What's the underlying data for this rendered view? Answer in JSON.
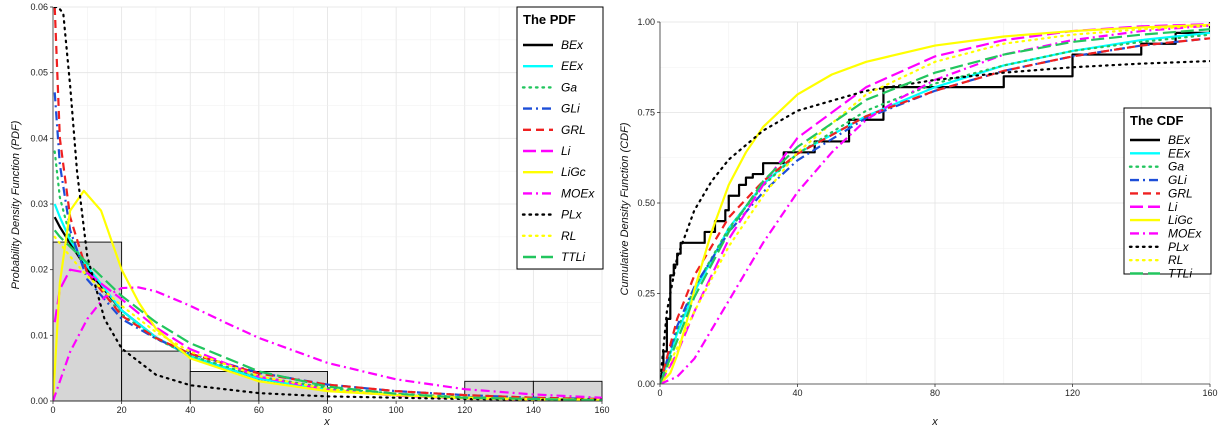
{
  "chart_data": [
    {
      "type": "line",
      "title": "",
      "xlabel": "x",
      "ylabel": "Probability Density Function (PDF)",
      "xlim": [
        0,
        160
      ],
      "ylim": [
        0,
        0.06
      ],
      "xticks": [
        "0",
        "20",
        "40",
        "60",
        "80",
        "100",
        "120",
        "140",
        "160"
      ],
      "yticks": [
        "0.00",
        "0.01",
        "0.02",
        "0.03",
        "0.04",
        "0.05",
        "0.06"
      ],
      "grid": true,
      "legend": {
        "title": "The PDF",
        "placement": "top-right"
      },
      "histogram": {
        "bin_edges": [
          0,
          20,
          40,
          60,
          80,
          100,
          120,
          140,
          160
        ],
        "density": [
          0.0242,
          0.0076,
          0.0045,
          0.0045,
          0.0,
          0.0,
          0.003,
          0.003
        ]
      },
      "series": [
        {
          "name": "BEx",
          "color": "#000000",
          "dash": "solid",
          "x": [
            0.5,
            2,
            5,
            10,
            20,
            30,
            40,
            60,
            80,
            100,
            120,
            140,
            160
          ],
          "y": [
            0.028,
            0.0265,
            0.024,
            0.02,
            0.0138,
            0.0097,
            0.0068,
            0.0034,
            0.0017,
            0.0009,
            0.0005,
            0.0003,
            0.0002
          ]
        },
        {
          "name": "EEx",
          "color": "#00ffff",
          "dash": "solid",
          "x": [
            0.5,
            2,
            5,
            10,
            20,
            30,
            40,
            60,
            80,
            100,
            120,
            140,
            160
          ],
          "y": [
            0.03,
            0.028,
            0.0245,
            0.0205,
            0.0138,
            0.0097,
            0.0068,
            0.0034,
            0.0017,
            0.0009,
            0.0005,
            0.0003,
            0.0002
          ]
        },
        {
          "name": "Ga",
          "color": "#22c55e",
          "dash": "dot",
          "x": [
            0.5,
            2,
            5,
            10,
            20,
            30,
            40,
            60,
            80,
            100,
            120,
            140,
            160
          ],
          "y": [
            0.038,
            0.031,
            0.025,
            0.0195,
            0.0132,
            0.0095,
            0.0069,
            0.0037,
            0.002,
            0.0011,
            0.0006,
            0.0004,
            0.0002
          ]
        },
        {
          "name": "GLi",
          "color": "#1d4ed8",
          "dash": "dashdot",
          "x": [
            0.5,
            2,
            5,
            10,
            20,
            30,
            40,
            60,
            80,
            100,
            120,
            140,
            160
          ],
          "y": [
            0.047,
            0.036,
            0.026,
            0.0185,
            0.0125,
            0.0095,
            0.0072,
            0.0043,
            0.0025,
            0.0015,
            0.0009,
            0.0005,
            0.0003
          ]
        },
        {
          "name": "GRL",
          "color": "#ef2020",
          "dash": "dash",
          "x": [
            0.5,
            2,
            5,
            10,
            20,
            30,
            40,
            60,
            80,
            100,
            120,
            140,
            160
          ],
          "y": [
            0.06,
            0.04,
            0.028,
            0.0195,
            0.013,
            0.0096,
            0.0072,
            0.0042,
            0.0025,
            0.0015,
            0.0009,
            0.0005,
            0.0003
          ]
        },
        {
          "name": "Li",
          "color": "#ff00ff",
          "dash": "longdash",
          "x": [
            0.5,
            2,
            5,
            10,
            20,
            30,
            40,
            60,
            80,
            100,
            120,
            140,
            160
          ],
          "y": [
            0.012,
            0.017,
            0.02,
            0.0195,
            0.0155,
            0.0112,
            0.0079,
            0.0037,
            0.0017,
            0.0008,
            0.0004,
            0.0002,
            0.0001
          ]
        },
        {
          "name": "LiGc",
          "color": "#ffff00",
          "dash": "solid",
          "x": [
            0,
            2,
            5,
            9,
            14,
            20,
            25,
            30,
            40,
            60,
            80,
            100,
            120,
            140,
            160
          ],
          "y": [
            0.0,
            0.018,
            0.029,
            0.032,
            0.029,
            0.02,
            0.015,
            0.011,
            0.0065,
            0.003,
            0.0015,
            0.0009,
            0.0005,
            0.0003,
            0.0002
          ]
        },
        {
          "name": "MOEx",
          "color": "#ff00ff",
          "dash": "dashdot",
          "x": [
            0,
            5,
            10,
            15,
            20,
            25,
            30,
            40,
            50,
            60,
            80,
            100,
            120,
            140,
            160
          ],
          "y": [
            0.0,
            0.0075,
            0.0125,
            0.0158,
            0.0172,
            0.0173,
            0.0167,
            0.0145,
            0.012,
            0.0096,
            0.0058,
            0.0033,
            0.0018,
            0.001,
            0.0005
          ]
        },
        {
          "name": "PLx",
          "color": "#000000",
          "dash": "dot",
          "x": [
            0.5,
            1.5,
            3,
            5,
            7,
            10,
            15,
            20,
            30,
            40,
            60,
            80,
            100,
            120,
            140,
            160
          ],
          "y": [
            0.06,
            0.06,
            0.059,
            0.048,
            0.035,
            0.022,
            0.0125,
            0.008,
            0.004,
            0.0024,
            0.0012,
            0.0007,
            0.0005,
            0.0003,
            0.0002,
            0.0002
          ]
        },
        {
          "name": "RL",
          "color": "#ffff00",
          "dash": "dot",
          "x": [
            0.5,
            2,
            5,
            10,
            20,
            30,
            40,
            60,
            80,
            100,
            120,
            140,
            160
          ],
          "y": [
            0.025,
            0.024,
            0.022,
            0.019,
            0.0145,
            0.0105,
            0.0075,
            0.0038,
            0.0018,
            0.0009,
            0.0004,
            0.0002,
            0.0001
          ]
        },
        {
          "name": "TTLi",
          "color": "#22c55e",
          "dash": "longdash",
          "x": [
            0.5,
            2,
            5,
            10,
            20,
            30,
            40,
            60,
            80,
            100,
            120,
            140,
            160
          ],
          "y": [
            0.026,
            0.025,
            0.0235,
            0.021,
            0.016,
            0.012,
            0.0088,
            0.0045,
            0.0022,
            0.0011,
            0.0005,
            0.0003,
            0.0001
          ]
        }
      ]
    },
    {
      "type": "line",
      "title": "",
      "xlabel": "x",
      "ylabel": "Cumulative Density Function (CDF)",
      "xlim": [
        0,
        160
      ],
      "ylim": [
        0,
        1.0
      ],
      "xticks": [
        "0",
        "40",
        "80",
        "120",
        "160"
      ],
      "yticks": [
        "0.00",
        "0.25",
        "0.50",
        "0.75",
        "1.00"
      ],
      "grid": true,
      "legend": {
        "title": "The CDF",
        "placement": "right"
      },
      "series": [
        {
          "name": "BEx",
          "color": "#000000",
          "dash": "solid",
          "step": true,
          "x": [
            0,
            0.5,
            1,
            2,
            3,
            4,
            5,
            6,
            8,
            10,
            13,
            16,
            19,
            20,
            23,
            25,
            27,
            30,
            36,
            45,
            55,
            65,
            100,
            120,
            140,
            150,
            160
          ],
          "y": [
            0.0,
            0.03,
            0.09,
            0.18,
            0.3,
            0.33,
            0.36,
            0.39,
            0.39,
            0.39,
            0.42,
            0.45,
            0.48,
            0.52,
            0.55,
            0.57,
            0.58,
            0.61,
            0.64,
            0.67,
            0.73,
            0.82,
            0.85,
            0.91,
            0.94,
            0.97,
            1.0
          ]
        },
        {
          "name": "EEx",
          "color": "#00ffff",
          "dash": "solid",
          "x": [
            0,
            5,
            10,
            20,
            30,
            40,
            60,
            80,
            100,
            120,
            140,
            160
          ],
          "y": [
            0.0,
            0.14,
            0.255,
            0.43,
            0.552,
            0.637,
            0.74,
            0.82,
            0.88,
            0.92,
            0.95,
            0.97
          ]
        },
        {
          "name": "Ga",
          "color": "#22c55e",
          "dash": "dot",
          "x": [
            0,
            5,
            10,
            20,
            30,
            40,
            60,
            80,
            100,
            120,
            140,
            160
          ],
          "y": [
            0.0,
            0.15,
            0.265,
            0.43,
            0.548,
            0.636,
            0.755,
            0.83,
            0.88,
            0.92,
            0.945,
            0.965
          ]
        },
        {
          "name": "GLi",
          "color": "#1d4ed8",
          "dash": "dashdot",
          "x": [
            0,
            5,
            10,
            20,
            30,
            40,
            60,
            80,
            100,
            120,
            140,
            160
          ],
          "y": [
            0.0,
            0.16,
            0.268,
            0.42,
            0.53,
            0.618,
            0.735,
            0.81,
            0.865,
            0.905,
            0.935,
            0.955
          ]
        },
        {
          "name": "GRL",
          "color": "#ef2020",
          "dash": "dash",
          "x": [
            0,
            5,
            10,
            20,
            30,
            40,
            60,
            80,
            100,
            120,
            140,
            160
          ],
          "y": [
            0.0,
            0.18,
            0.3,
            0.46,
            0.56,
            0.636,
            0.74,
            0.81,
            0.865,
            0.905,
            0.935,
            0.955
          ]
        },
        {
          "name": "Li",
          "color": "#ff00ff",
          "dash": "longdash",
          "x": [
            0,
            5,
            10,
            20,
            30,
            40,
            60,
            80,
            100,
            120,
            140,
            160
          ],
          "y": [
            0.0,
            0.085,
            0.2,
            0.4,
            0.55,
            0.68,
            0.82,
            0.905,
            0.95,
            0.975,
            0.988,
            0.994
          ]
        },
        {
          "name": "LiGc",
          "color": "#ffff00",
          "dash": "solid",
          "x": [
            0,
            3,
            5,
            8,
            10,
            15,
            20,
            25,
            30,
            40,
            50,
            60,
            80,
            100,
            120,
            140,
            160
          ],
          "y": [
            0.0,
            0.03,
            0.08,
            0.18,
            0.26,
            0.42,
            0.55,
            0.64,
            0.71,
            0.8,
            0.855,
            0.89,
            0.935,
            0.96,
            0.975,
            0.985,
            0.992
          ]
        },
        {
          "name": "MOEx",
          "color": "#ff00ff",
          "dash": "dashdot",
          "x": [
            0,
            5,
            10,
            15,
            20,
            25,
            30,
            40,
            50,
            60,
            70,
            80,
            100,
            120,
            140,
            160
          ],
          "y": [
            0.0,
            0.02,
            0.07,
            0.15,
            0.23,
            0.31,
            0.39,
            0.53,
            0.64,
            0.73,
            0.79,
            0.84,
            0.91,
            0.95,
            0.975,
            0.99
          ]
        },
        {
          "name": "PLx",
          "color": "#000000",
          "dash": "dot",
          "x": [
            0,
            2,
            5,
            10,
            15,
            20,
            30,
            40,
            60,
            80,
            100,
            120,
            140,
            160
          ],
          "y": [
            0.0,
            0.2,
            0.35,
            0.48,
            0.56,
            0.62,
            0.7,
            0.755,
            0.81,
            0.84,
            0.86,
            0.875,
            0.885,
            0.892
          ]
        },
        {
          "name": "RL",
          "color": "#ffff00",
          "dash": "dot",
          "x": [
            0,
            5,
            10,
            20,
            30,
            40,
            60,
            80,
            100,
            120,
            140,
            160
          ],
          "y": [
            0.0,
            0.1,
            0.2,
            0.38,
            0.52,
            0.64,
            0.8,
            0.89,
            0.94,
            0.965,
            0.98,
            0.99
          ]
        },
        {
          "name": "TTLi",
          "color": "#22c55e",
          "dash": "longdash",
          "x": [
            0,
            5,
            10,
            20,
            30,
            40,
            60,
            80,
            100,
            120,
            140,
            160
          ],
          "y": [
            0.0,
            0.12,
            0.24,
            0.42,
            0.56,
            0.655,
            0.785,
            0.86,
            0.91,
            0.945,
            0.965,
            0.98
          ]
        }
      ]
    }
  ]
}
